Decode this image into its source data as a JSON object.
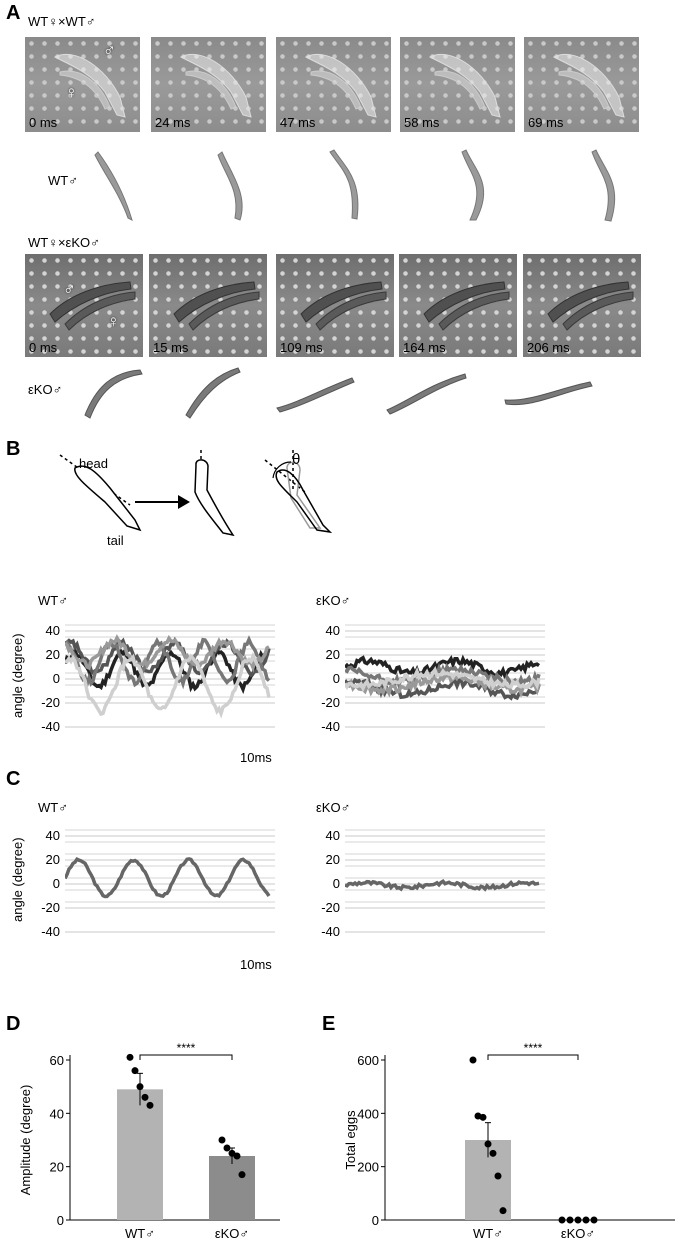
{
  "panels": {
    "a": "A",
    "b": "B",
    "c": "C",
    "d": "D",
    "e": "E"
  },
  "panel_a": {
    "cross1": "WT♀×WT♂",
    "cross2": "WT♀×εKO♂",
    "male_symbol": "♂",
    "female_symbol": "♀",
    "wt_times": [
      "0 ms",
      "24 ms",
      "47 ms",
      "58 ms",
      "69 ms"
    ],
    "ko_times": [
      "0 ms",
      "15 ms",
      "109 ms",
      "164 ms",
      "206 ms"
    ],
    "wt_silhouette_label": "WT♂",
    "ko_silhouette_label": "εKO♂"
  },
  "panel_b": {
    "head": "head",
    "tail": "tail",
    "theta": "θ",
    "wt_title": "WT♂",
    "ko_title": "εKO♂",
    "ylabel": "angle (degree)",
    "yticks": [
      "40",
      "20",
      "0",
      "-20",
      "-40"
    ],
    "scale_label": "10ms",
    "trace_colors": [
      "#222222",
      "#555555",
      "#777777",
      "#999999",
      "#cfcfcf"
    ]
  },
  "panel_c": {
    "wt_title": "WT♂",
    "ko_title": "εKO♂",
    "ylabel": "angle (degree)",
    "yticks": [
      "40",
      "20",
      "0",
      "-20",
      "-40"
    ],
    "scale_label": "10ms",
    "trace_color": "#666666"
  },
  "chart_data": [
    {
      "type": "bar",
      "panel": "D",
      "categories": [
        "WT♂",
        "εKO♂"
      ],
      "values": [
        49,
        24
      ],
      "errors": [
        6,
        3
      ],
      "points": [
        [
          61,
          56,
          50,
          46,
          43
        ],
        [
          30,
          27,
          25,
          24,
          17
        ]
      ],
      "ylabel": "Amplitude (degree)",
      "ylim": [
        0,
        60
      ],
      "yticks": [
        "0",
        "20",
        "40",
        "60"
      ],
      "significance": "****",
      "colors": [
        "#b3b3b3",
        "#8c8c8c"
      ]
    },
    {
      "type": "bar",
      "panel": "E",
      "categories": [
        "WT♂",
        "εKO♂"
      ],
      "values": [
        300,
        0
      ],
      "errors": [
        65,
        0
      ],
      "points": [
        [
          600,
          390,
          385,
          285,
          250,
          165,
          35
        ],
        [
          0,
          0,
          0,
          0,
          0
        ]
      ],
      "ylabel": "Total eggs",
      "ylim": [
        0,
        600
      ],
      "yticks": [
        "0",
        "200",
        "400",
        "600"
      ],
      "significance": "****",
      "colors": [
        "#b3b3b3",
        "#8c8c8c"
      ]
    }
  ]
}
